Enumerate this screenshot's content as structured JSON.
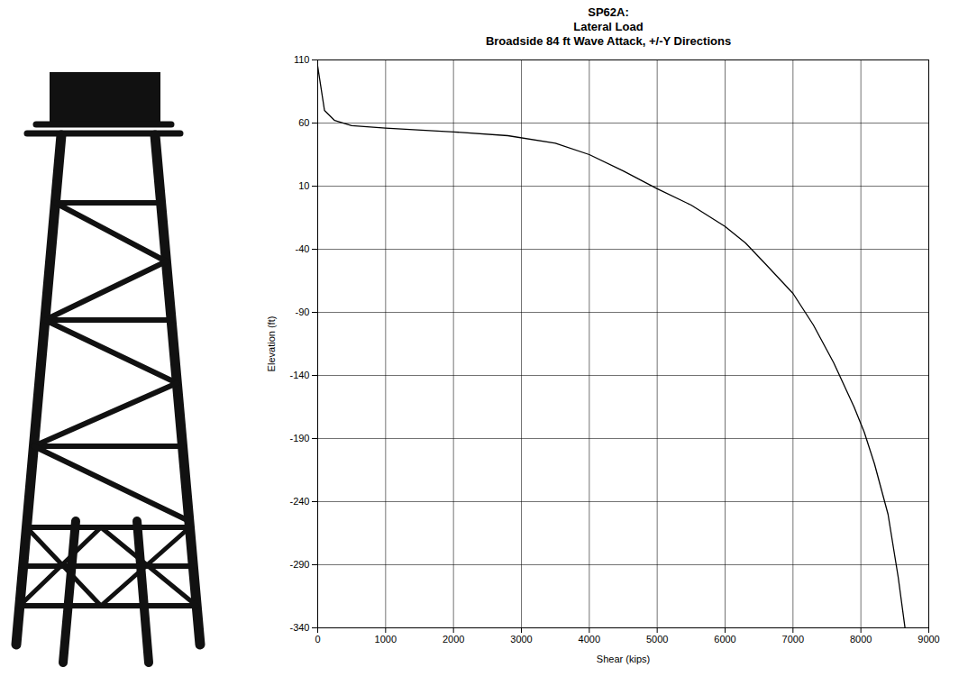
{
  "chart_data": {
    "type": "line",
    "title": [
      "SP62A:",
      "Lateral Load",
      "Broadside 84 ft Wave Attack, +/-Y Directions"
    ],
    "x_label": "Shear (kips)",
    "y_label": "Elevation (ft)",
    "x": [
      0,
      100,
      250,
      500,
      1000,
      2000,
      2800,
      3500,
      4000,
      4500,
      5000,
      5500,
      6000,
      6300,
      6600,
      7000,
      7300,
      7600,
      7900,
      8050,
      8200,
      8400,
      8550,
      8650
    ],
    "values": [
      105,
      70,
      62,
      58,
      56,
      53,
      50,
      44,
      35,
      22,
      8,
      -5,
      -22,
      -35,
      -52,
      -75,
      -100,
      -130,
      -165,
      -185,
      -210,
      -250,
      -300,
      -340
    ],
    "color": "#000000",
    "xlim": [
      0,
      9000
    ],
    "xticks": [
      0,
      1000,
      2000,
      3000,
      4000,
      5000,
      6000,
      7000,
      8000,
      9000
    ],
    "ylim": [
      -340,
      110
    ],
    "yticks": [
      -340,
      -290,
      -240,
      -190,
      -140,
      -90,
      -40,
      10,
      60,
      110
    ],
    "grid": true
  }
}
